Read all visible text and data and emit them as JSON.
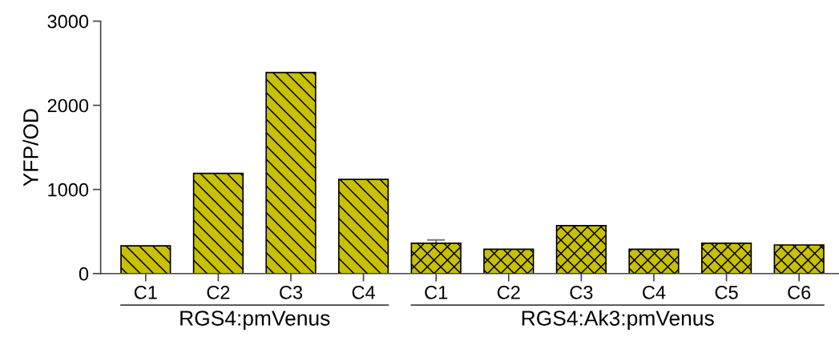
{
  "chart_data": {
    "type": "bar",
    "ylabel": "YFP/OD",
    "categories": [
      "C1",
      "C2",
      "C3",
      "C4",
      "C1",
      "C2",
      "C3",
      "C4",
      "C5",
      "C6"
    ],
    "series": [
      {
        "color": "#c8c000",
        "values": [
          330,
          1190,
          2390,
          1120,
          null,
          null,
          null,
          null,
          null,
          null
        ]
      },
      {
        "color": "#c8c000",
        "values": [
          null,
          null,
          null,
          null,
          360,
          290,
          570,
          290,
          360,
          340
        ],
        "errors": [
          null,
          null,
          null,
          null,
          40,
          null,
          null,
          null,
          null,
          null
        ]
      }
    ],
    "ylim": [
      0,
      3000
    ],
    "yticks": [
      0,
      1000,
      2000,
      3000
    ],
    "grid": false,
    "legend": false,
    "annotations": [
      "RGS4:pmVenus",
      "RGS4:Ak3:pmVenus"
    ]
  }
}
